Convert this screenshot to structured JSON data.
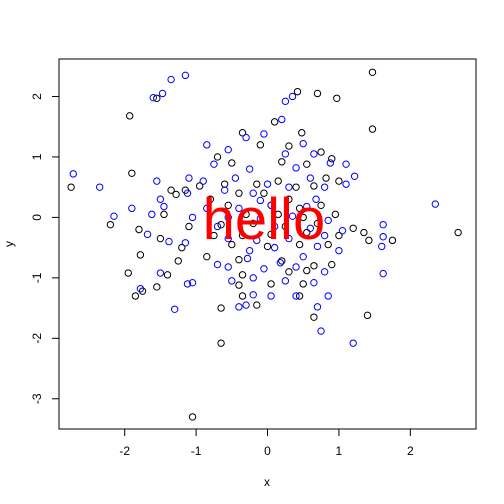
{
  "chart_data": {
    "type": "scatter",
    "title": "",
    "xlabel": "x",
    "ylabel": "y",
    "xlim": [
      -2.92,
      2.92
    ],
    "ylim": [
      -3.5,
      2.62
    ],
    "x_ticks": [
      -2,
      -1,
      0,
      1,
      2
    ],
    "y_ticks": [
      -3,
      -2,
      -1,
      0,
      1,
      2
    ],
    "grid": false,
    "annotations": [
      {
        "text": "hello",
        "x": -0.05,
        "y": -0.1,
        "color": "#ff0000"
      }
    ],
    "series": [
      {
        "color": "#000000",
        "points": [
          [
            1.47,
            2.4
          ],
          [
            0.42,
            2.08
          ],
          [
            0.7,
            2.05
          ],
          [
            0.97,
            1.97
          ],
          [
            -1.55,
            1.97
          ],
          [
            -1.93,
            1.68
          ],
          [
            1.47,
            1.46
          ],
          [
            -0.35,
            1.4
          ],
          [
            0.1,
            1.58
          ],
          [
            0.48,
            1.4
          ],
          [
            -0.1,
            1.2
          ],
          [
            0.3,
            1.18
          ],
          [
            0.75,
            1.08
          ],
          [
            0.9,
            0.97
          ],
          [
            -0.7,
            1.0
          ],
          [
            -0.5,
            0.9
          ],
          [
            0.2,
            0.92
          ],
          [
            0.55,
            0.88
          ],
          [
            0.82,
            0.65
          ],
          [
            1.0,
            0.6
          ],
          [
            -1.9,
            0.73
          ],
          [
            -0.95,
            0.52
          ],
          [
            -0.6,
            0.55
          ],
          [
            -0.15,
            0.55
          ],
          [
            0.15,
            0.6
          ],
          [
            0.4,
            0.5
          ],
          [
            0.65,
            0.52
          ],
          [
            -1.35,
            0.45
          ],
          [
            -1.28,
            0.38
          ],
          [
            -1.15,
            0.45
          ],
          [
            -0.4,
            0.4
          ],
          [
            -0.05,
            0.4
          ],
          [
            0.3,
            0.3
          ],
          [
            -2.75,
            0.5
          ],
          [
            -0.8,
            0.3
          ],
          [
            -0.55,
            0.2
          ],
          [
            0.05,
            0.2
          ],
          [
            0.45,
            0.15
          ],
          [
            0.75,
            0.2
          ],
          [
            -1.45,
            0.05
          ],
          [
            -0.3,
            0.05
          ],
          [
            0.15,
            0.05
          ],
          [
            0.5,
            0.0
          ],
          [
            0.95,
            0.05
          ],
          [
            -2.2,
            -0.12
          ],
          [
            -1.8,
            -0.2
          ],
          [
            -1.1,
            -0.15
          ],
          [
            -0.65,
            -0.12
          ],
          [
            -0.2,
            -0.1
          ],
          [
            0.25,
            -0.15
          ],
          [
            0.7,
            -0.1
          ],
          [
            1.2,
            -0.18
          ],
          [
            1.35,
            -0.25
          ],
          [
            -1.5,
            -0.35
          ],
          [
            -0.75,
            -0.3
          ],
          [
            -0.35,
            -0.3
          ],
          [
            0.05,
            -0.28
          ],
          [
            0.55,
            -0.25
          ],
          [
            1.0,
            -0.3
          ],
          [
            1.42,
            -0.38
          ],
          [
            1.75,
            -0.38
          ],
          [
            2.67,
            -0.25
          ],
          [
            -1.2,
            -0.5
          ],
          [
            -0.5,
            -0.45
          ],
          [
            0.0,
            -0.48
          ],
          [
            0.45,
            -0.45
          ],
          [
            0.85,
            -0.45
          ],
          [
            -1.78,
            -0.62
          ],
          [
            -1.25,
            -0.72
          ],
          [
            -0.85,
            -0.65
          ],
          [
            -0.4,
            -0.7
          ],
          [
            0.2,
            -0.72
          ],
          [
            0.65,
            -0.8
          ],
          [
            0.9,
            -0.78
          ],
          [
            -1.95,
            -0.92
          ],
          [
            -1.4,
            -0.95
          ],
          [
            -0.35,
            -0.95
          ],
          [
            0.3,
            -0.9
          ],
          [
            0.55,
            -0.88
          ],
          [
            -1.85,
            -1.3
          ],
          [
            -1.75,
            -1.22
          ],
          [
            -1.55,
            -1.15
          ],
          [
            -0.4,
            -1.12
          ],
          [
            0.05,
            -1.1
          ],
          [
            0.5,
            -1.1
          ],
          [
            -0.35,
            -1.3
          ],
          [
            0.45,
            -1.3
          ],
          [
            -0.15,
            -1.45
          ],
          [
            -0.65,
            -1.5
          ],
          [
            0.65,
            -1.65
          ],
          [
            1.4,
            -1.62
          ],
          [
            -0.65,
            -2.08
          ],
          [
            -1.05,
            -3.3
          ]
        ]
      },
      {
        "color": "#0000ff",
        "points": [
          [
            -1.15,
            2.35
          ],
          [
            -1.35,
            2.28
          ],
          [
            -1.47,
            2.05
          ],
          [
            -1.6,
            1.98
          ],
          [
            0.25,
            1.92
          ],
          [
            0.35,
            2.0
          ],
          [
            0.2,
            1.62
          ],
          [
            -0.05,
            1.38
          ],
          [
            -0.3,
            1.32
          ],
          [
            0.5,
            1.22
          ],
          [
            -0.85,
            1.2
          ],
          [
            -0.55,
            1.12
          ],
          [
            0.25,
            1.05
          ],
          [
            0.65,
            1.05
          ],
          [
            -2.72,
            0.72
          ],
          [
            -0.75,
            0.88
          ],
          [
            -0.25,
            0.8
          ],
          [
            0.4,
            0.82
          ],
          [
            0.88,
            0.9
          ],
          [
            1.1,
            0.88
          ],
          [
            -1.1,
            0.65
          ],
          [
            -0.45,
            0.65
          ],
          [
            0.0,
            0.55
          ],
          [
            0.6,
            0.65
          ],
          [
            1.22,
            0.68
          ],
          [
            -2.35,
            0.5
          ],
          [
            -1.55,
            0.6
          ],
          [
            -0.9,
            0.6
          ],
          [
            0.3,
            0.5
          ],
          [
            0.8,
            0.5
          ],
          [
            1.1,
            0.55
          ],
          [
            -0.6,
            0.45
          ],
          [
            -0.2,
            0.4
          ],
          [
            -1.5,
            0.3
          ],
          [
            -1.12,
            0.4
          ],
          [
            -0.1,
            0.28
          ],
          [
            0.68,
            0.3
          ],
          [
            2.35,
            0.22
          ],
          [
            -1.9,
            0.15
          ],
          [
            -1.45,
            0.18
          ],
          [
            -0.85,
            0.15
          ],
          [
            -0.4,
            0.15
          ],
          [
            0.05,
            0.2
          ],
          [
            0.55,
            0.18
          ],
          [
            -2.15,
            0.02
          ],
          [
            -1.62,
            0.05
          ],
          [
            -1.05,
            0.0
          ],
          [
            -0.55,
            0.0
          ],
          [
            -0.1,
            -0.02
          ],
          [
            0.35,
            0.02
          ],
          [
            0.85,
            -0.05
          ],
          [
            1.62,
            -0.12
          ],
          [
            -0.7,
            -0.15
          ],
          [
            0.1,
            -0.15
          ],
          [
            0.6,
            -0.18
          ],
          [
            1.05,
            -0.22
          ],
          [
            -1.68,
            -0.28
          ],
          [
            -1.38,
            -0.4
          ],
          [
            -0.55,
            -0.35
          ],
          [
            -0.15,
            -0.38
          ],
          [
            0.3,
            -0.35
          ],
          [
            0.8,
            -0.3
          ],
          [
            1.62,
            -0.32
          ],
          [
            -1.15,
            -0.42
          ],
          [
            -0.25,
            -0.55
          ],
          [
            0.1,
            -0.5
          ],
          [
            0.7,
            -0.48
          ],
          [
            1.6,
            -0.48
          ],
          [
            -0.7,
            -0.78
          ],
          [
            -0.28,
            -0.68
          ],
          [
            0.18,
            -0.75
          ],
          [
            0.5,
            -0.65
          ],
          [
            1.0,
            -0.55
          ],
          [
            -0.55,
            -0.82
          ],
          [
            -0.05,
            -0.85
          ],
          [
            0.4,
            -0.82
          ],
          [
            0.8,
            -0.9
          ],
          [
            -1.5,
            -0.92
          ],
          [
            1.62,
            -0.93
          ],
          [
            -0.5,
            -1.05
          ],
          [
            -0.2,
            -1.0
          ],
          [
            0.25,
            -1.05
          ],
          [
            0.65,
            -1.08
          ],
          [
            -1.05,
            -1.08
          ],
          [
            -1.78,
            -1.18
          ],
          [
            -0.3,
            -1.45
          ],
          [
            0.05,
            -1.3
          ],
          [
            0.4,
            -1.3
          ],
          [
            -1.3,
            -1.52
          ],
          [
            -0.4,
            -1.48
          ],
          [
            0.7,
            -1.48
          ],
          [
            0.75,
            -1.88
          ],
          [
            1.2,
            -2.08
          ],
          [
            -0.2,
            -1.28
          ],
          [
            -1.12,
            -1.1
          ],
          [
            0.85,
            -1.3
          ]
        ]
      }
    ]
  }
}
